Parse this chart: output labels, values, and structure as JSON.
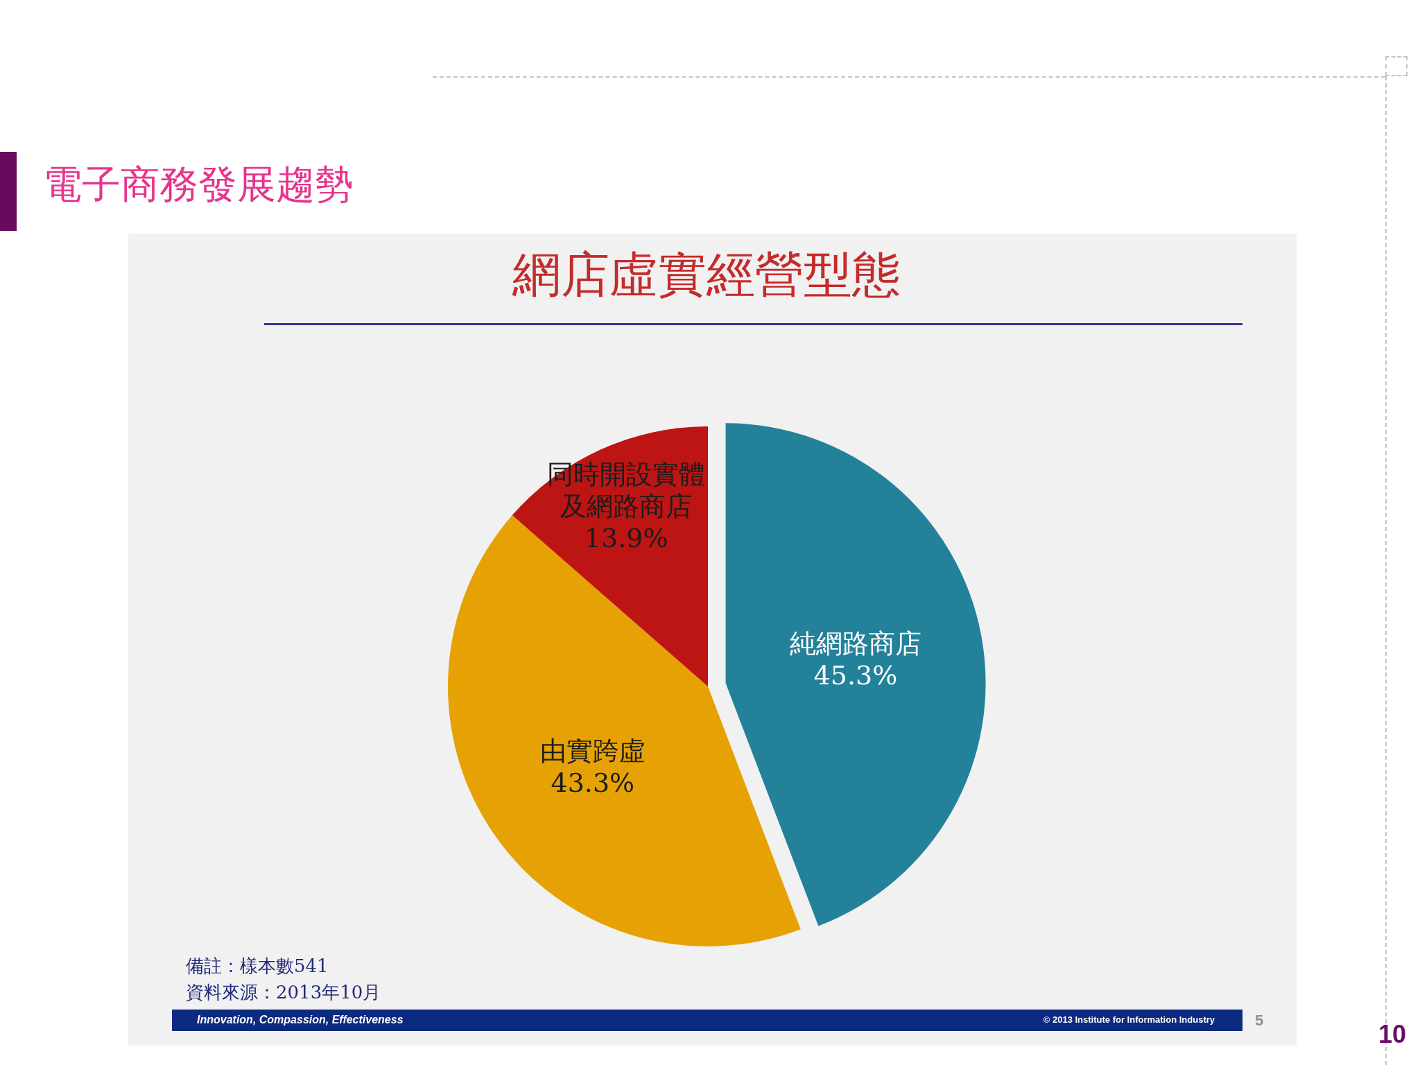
{
  "chart_data": {
    "type": "pie",
    "title": "網店虛實經營型態",
    "subtitle": "電子商務發展趨勢",
    "categories": [
      "純網路商店",
      "由實跨虛",
      "同時開設實體及網路商店"
    ],
    "values": [
      45.3,
      43.3,
      13.9
    ],
    "colors": [
      "#23819a",
      "#e6a205",
      "#bd1414"
    ],
    "value_labels": [
      "45.3%",
      "43.3%",
      "13.9%"
    ],
    "annotations": [
      "備註：樣本數541",
      "資料來源：2013年10月",
      "Innovation, Compassion, Effectiveness",
      "© 2013 Institute for Information Industry",
      "5",
      "10"
    ]
  }
}
